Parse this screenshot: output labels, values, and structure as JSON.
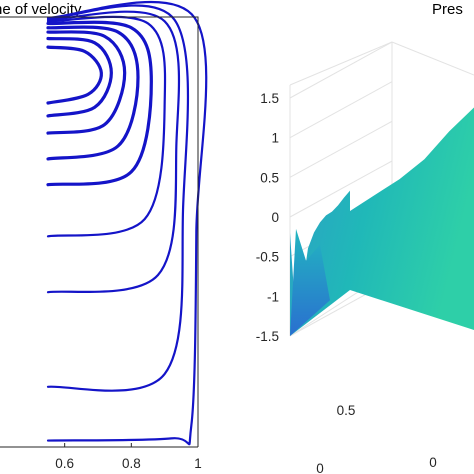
{
  "chart_data": [
    {
      "type": "line",
      "subtype": "streamlines",
      "title": "ne of velocity",
      "xlim": [
        0.4,
        1.0
      ],
      "ylim": [
        0,
        1
      ],
      "xticks": [
        "0.6",
        "0.8",
        "1"
      ],
      "grid": false,
      "line_color": "#1414c8",
      "vortex_center": [
        0.55,
        0.86
      ],
      "series": [
        {
          "values": [
            [
              0.55,
              0.93
            ],
            [
              0.66,
              0.92
            ],
            [
              0.71,
              0.87
            ],
            [
              0.67,
              0.82
            ],
            [
              0.55,
              0.8
            ]
          ]
        },
        {
          "values": [
            [
              0.55,
              0.95
            ],
            [
              0.69,
              0.94
            ],
            [
              0.74,
              0.87
            ],
            [
              0.69,
              0.79
            ],
            [
              0.55,
              0.77
            ]
          ]
        },
        {
          "values": [
            [
              0.55,
              0.965
            ],
            [
              0.72,
              0.955
            ],
            [
              0.78,
              0.87
            ],
            [
              0.72,
              0.75
            ],
            [
              0.55,
              0.73
            ]
          ]
        },
        {
          "values": [
            [
              0.55,
              0.975
            ],
            [
              0.76,
              0.965
            ],
            [
              0.82,
              0.86
            ],
            [
              0.76,
              0.7
            ],
            [
              0.55,
              0.67
            ]
          ]
        },
        {
          "values": [
            [
              0.55,
              0.985
            ],
            [
              0.8,
              0.975
            ],
            [
              0.86,
              0.85
            ],
            [
              0.8,
              0.64
            ],
            [
              0.55,
              0.61
            ]
          ]
        },
        {
          "values": [
            [
              0.55,
              0.99
            ],
            [
              0.85,
              0.985
            ],
            [
              0.9,
              0.8
            ],
            [
              0.84,
              0.53
            ],
            [
              0.55,
              0.49
            ]
          ]
        },
        {
          "values": [
            [
              0.55,
              0.993
            ],
            [
              0.9,
              0.99
            ],
            [
              0.935,
              0.7
            ],
            [
              0.88,
              0.4
            ],
            [
              0.55,
              0.36
            ]
          ]
        },
        {
          "values": [
            [
              0.55,
              0.996
            ],
            [
              0.93,
              0.993
            ],
            [
              0.955,
              0.55
            ],
            [
              0.9,
              0.17
            ],
            [
              0.55,
              0.14
            ]
          ]
        },
        {
          "values": [
            [
              0.55,
              0.998
            ],
            [
              0.99,
              0.998
            ],
            [
              0.995,
              0.5
            ],
            [
              0.98,
              0.05
            ],
            [
              0.92,
              0.02
            ],
            [
              0.55,
              0.015
            ]
          ]
        }
      ]
    },
    {
      "type": "surface",
      "title": "Pres",
      "zlim": [
        -1.5,
        1.5
      ],
      "zticks": [
        "1.5",
        "1",
        "0.5",
        "0",
        "-0.5",
        "-1",
        "-1.5"
      ],
      "xticks": [
        "0.5",
        "0"
      ],
      "yticks": [
        "0"
      ],
      "colormap": [
        "#2e9ec8",
        "#20b8b8",
        "#2ecfa8"
      ],
      "surface_edge_z": [
        -1.32,
        -0.95,
        -0.45,
        -0.28,
        -0.18,
        -0.12,
        -0.1,
        -0.05,
        0.02,
        0.08
      ],
      "surface_ridge_z": [
        -0.05,
        0.05,
        0.15,
        0.3,
        0.55,
        0.75
      ]
    }
  ]
}
